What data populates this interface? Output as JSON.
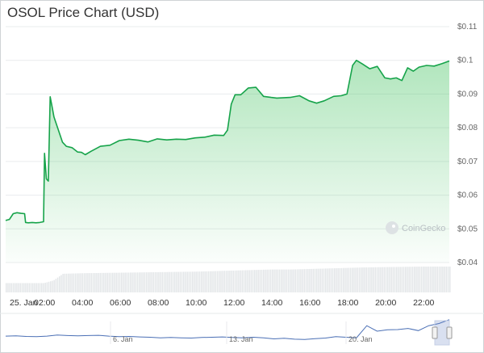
{
  "title": "OSOL Price Chart (USD)",
  "watermark": "CoinGecko",
  "chart_data": {
    "type": "area",
    "title": "OSOL Price Chart (USD)",
    "xlabel": "",
    "ylabel": "",
    "yticks": [
      "$0.11",
      "$0.1",
      "$0.09",
      "$0.08",
      "$0.07",
      "$0.06",
      "$0.05",
      "$0.04"
    ],
    "ylim": [
      0.04,
      0.11
    ],
    "x_ticks": [
      "25. Jan",
      "02:00",
      "04:00",
      "06:00",
      "08:00",
      "10:00",
      "12:00",
      "14:00",
      "16:00",
      "18:00",
      "20:00",
      "22:00"
    ],
    "x_unit": "hours since 25. Jan 00:00",
    "xlim": [
      0,
      23.4
    ],
    "series": [
      {
        "x": [
          0.0,
          0.2,
          0.4,
          0.6,
          0.8,
          1.0,
          1.05,
          1.2,
          1.4,
          1.6,
          1.8,
          2.0,
          2.05,
          2.15,
          2.25,
          2.35,
          2.45,
          2.55,
          2.65,
          2.8,
          3.0,
          3.2,
          3.5,
          3.8,
          4.0,
          4.2,
          4.5,
          5.0,
          5.5,
          6.0,
          6.5,
          7.0,
          7.5,
          8.0,
          8.5,
          9.0,
          9.5,
          10.0,
          10.5,
          11.0,
          11.5,
          11.7,
          11.9,
          12.1,
          12.4,
          12.8,
          13.2,
          13.6,
          14.0,
          14.3,
          15.0,
          15.5,
          16.0,
          16.4,
          16.8,
          17.3,
          17.7,
          18.0,
          18.3,
          18.5,
          18.8,
          19.2,
          19.6,
          20.0,
          20.3,
          20.6,
          20.9,
          21.2,
          21.5,
          21.8,
          22.2,
          22.6,
          23.0,
          23.4
        ],
        "values": [
          0.0525,
          0.0528,
          0.0545,
          0.0548,
          0.0546,
          0.0545,
          0.0519,
          0.0518,
          0.0519,
          0.0518,
          0.0519,
          0.0521,
          0.0724,
          0.0648,
          0.0642,
          0.0892,
          0.0862,
          0.0832,
          0.0815,
          0.079,
          0.0757,
          0.0745,
          0.0741,
          0.0728,
          0.0727,
          0.072,
          0.073,
          0.0745,
          0.0748,
          0.0762,
          0.0766,
          0.0763,
          0.0758,
          0.0767,
          0.0764,
          0.0766,
          0.0765,
          0.077,
          0.0772,
          0.0778,
          0.0777,
          0.0793,
          0.087,
          0.0898,
          0.0898,
          0.0918,
          0.092,
          0.0893,
          0.089,
          0.0888,
          0.089,
          0.0895,
          0.088,
          0.0873,
          0.088,
          0.0893,
          0.0895,
          0.09,
          0.0985,
          0.1,
          0.099,
          0.0975,
          0.0982,
          0.0948,
          0.0945,
          0.0948,
          0.094,
          0.0978,
          0.0968,
          0.098,
          0.0985,
          0.0983,
          0.099,
          0.0998
        ]
      }
    ],
    "volume": {
      "x": [
        0,
        1,
        2,
        2.5,
        3,
        4,
        5,
        6,
        7,
        8,
        9,
        10,
        11,
        12,
        13,
        14,
        15,
        16,
        17,
        18,
        19,
        20,
        21,
        22,
        23,
        23.4
      ],
      "values": [
        0.35,
        0.35,
        0.35,
        0.45,
        0.7,
        0.72,
        0.73,
        0.74,
        0.75,
        0.76,
        0.77,
        0.78,
        0.8,
        0.82,
        0.84,
        0.86,
        0.86,
        0.88,
        0.9,
        0.92,
        0.94,
        0.95,
        0.96,
        0.97,
        0.97,
        0.97
      ]
    },
    "navigator": {
      "labels": [
        "6. Jan",
        "13. Jan",
        "20. Jan"
      ],
      "values": [
        0.68,
        0.67,
        0.69,
        0.7,
        0.68,
        0.64,
        0.66,
        0.67,
        0.66,
        0.65,
        0.68,
        0.7,
        0.69,
        0.71,
        0.72,
        0.74,
        0.73,
        0.74,
        0.75,
        0.73,
        0.72,
        0.71,
        0.73,
        0.74,
        0.72,
        0.74,
        0.78,
        0.76,
        0.79,
        0.8,
        0.77,
        0.75,
        0.7,
        0.72,
        0.74,
        0.3,
        0.5,
        0.45,
        0.44,
        0.4,
        0.48,
        0.3,
        0.22,
        0.08
      ]
    },
    "grid": true,
    "line_color": "#16a34a",
    "fill_color": "#3cc05a"
  }
}
